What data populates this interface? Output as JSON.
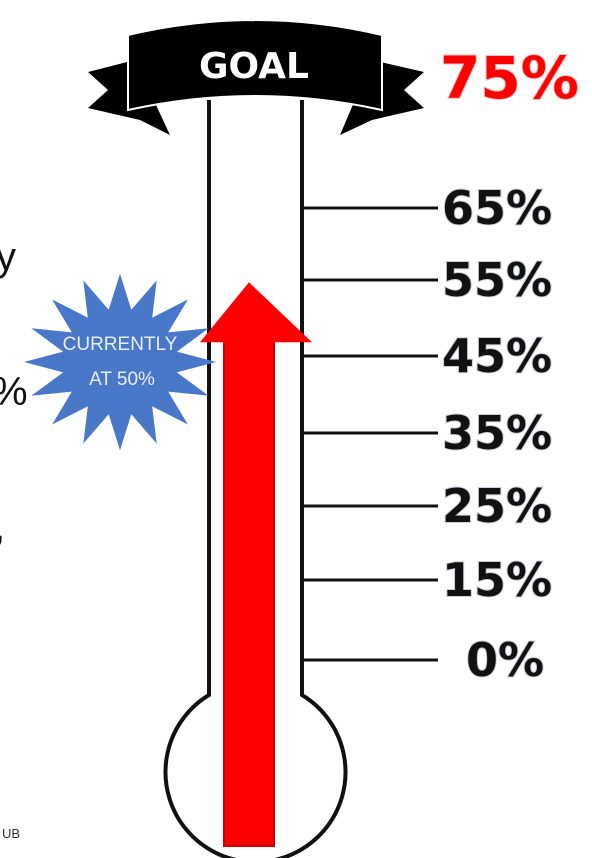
{
  "goal": {
    "label": "GOAL",
    "value": "75%"
  },
  "colors": {
    "arrow": "#ff0000",
    "goal_value": "#ff0000",
    "banner": "#000000",
    "burst": "#4a78c8",
    "burst_text": "#e8eef8"
  },
  "current": {
    "value_percent": 50,
    "callout_line1": "CURRENTLY",
    "callout_line2": "AT 50%"
  },
  "scale_ticks": [
    {
      "value": 65,
      "label": "65%"
    },
    {
      "value": 55,
      "label": "55%"
    },
    {
      "value": 45,
      "label": "45%"
    },
    {
      "value": 35,
      "label": "35%"
    },
    {
      "value": 25,
      "label": "25%"
    },
    {
      "value": 15,
      "label": "15%"
    },
    {
      "value": 0,
      "label": "0%"
    }
  ],
  "left_edge_fragments": [
    "y",
    "%",
    ","
  ],
  "footer_fragment": "UB"
}
